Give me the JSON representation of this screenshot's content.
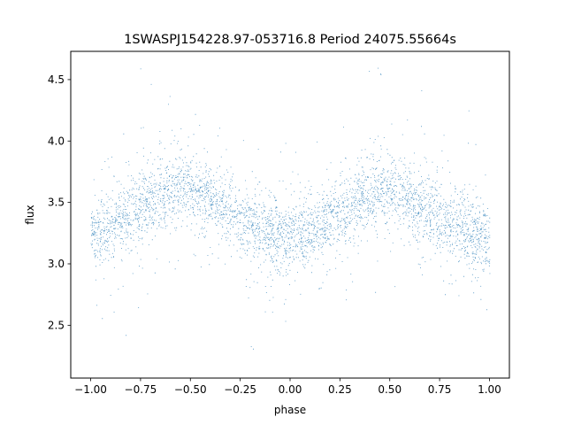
{
  "chart_data": {
    "type": "scatter",
    "title": "1SWASPJ154228.97-053716.8 Period 24075.55664s",
    "xlabel": "phase",
    "ylabel": "flux",
    "xlim": [
      -1.1,
      1.1
    ],
    "ylim": [
      2.07,
      4.73
    ],
    "xticks": [
      -1.0,
      -0.75,
      -0.5,
      -0.25,
      0.0,
      0.25,
      0.5,
      0.75,
      1.0
    ],
    "xtick_labels": [
      "−1.00",
      "−0.75",
      "−0.50",
      "−0.25",
      "0.00",
      "0.25",
      "0.50",
      "0.75",
      "1.00"
    ],
    "yticks": [
      2.5,
      3.0,
      3.5,
      4.0,
      4.5
    ],
    "ytick_labels": [
      "2.5",
      "3.0",
      "3.5",
      "4.0",
      "4.5"
    ],
    "grid": false,
    "legend": "none",
    "marker_color": "#1f77b4",
    "series": [
      {
        "x": [
          -1.0,
          -0.9,
          -0.8,
          -0.7,
          -0.6,
          -0.55,
          -0.5,
          -0.4,
          -0.3,
          -0.2,
          -0.1,
          0.0,
          0.1,
          0.2,
          0.3,
          0.4,
          0.45,
          0.5,
          0.6,
          0.7,
          0.8,
          0.9,
          1.0
        ],
        "y": [
          3.22,
          3.31,
          3.42,
          3.53,
          3.6,
          3.62,
          3.6,
          3.52,
          3.42,
          3.32,
          3.24,
          3.2,
          3.26,
          3.36,
          3.48,
          3.58,
          3.6,
          3.58,
          3.5,
          3.42,
          3.34,
          3.26,
          3.2
        ]
      }
    ]
  }
}
